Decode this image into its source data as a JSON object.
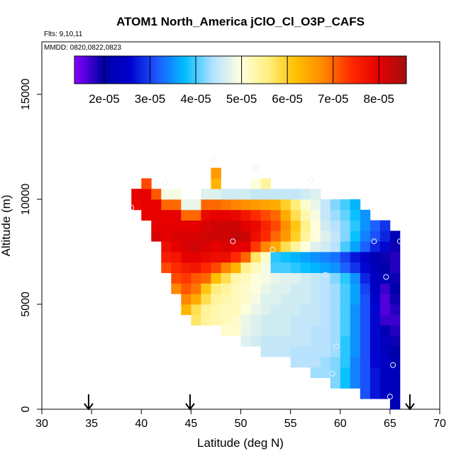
{
  "chart_data": {
    "type": "heatmap",
    "title": "ATOM1 North_America jClO_Cl_O3P_CAFS",
    "flights_label": "Flts: 9,10,11",
    "dates_label": "MMDD: 0820,0822,0823",
    "xlabel": "Latitude (deg N)",
    "ylabel": "Altitude (m)",
    "xlim": [
      30,
      70
    ],
    "ylim": [
      0,
      17500
    ],
    "x_ticks": [
      30,
      35,
      40,
      45,
      50,
      55,
      60,
      65,
      70
    ],
    "x_tick_labels": [
      "30",
      "35",
      "40",
      "45",
      "50",
      "55",
      "60",
      "65",
      "70"
    ],
    "y_ticks": [
      0,
      5000,
      10000,
      15000
    ],
    "y_tick_labels": [
      "0",
      "5000",
      "10000",
      "15000"
    ],
    "colorbar": {
      "min": 1.35e-05,
      "max": 8.6e-05,
      "ticks": [
        2e-05,
        3e-05,
        4e-05,
        5e-05,
        6e-05,
        7e-05,
        8e-05
      ],
      "tick_labels": [
        "2e-05",
        "3e-05",
        "4e-05",
        "5e-05",
        "6e-05",
        "7e-05",
        "8e-05"
      ],
      "stops": [
        "#8b00ff",
        "#0000a8",
        "#0000cd",
        "#1e5aff",
        "#00bfff",
        "#b4e1ff",
        "#ffffe0",
        "#fff080",
        "#ffc000",
        "#ff8800",
        "#ff2a00",
        "#e60000",
        "#a01010"
      ]
    },
    "cell_size": {
      "dlat": 1.0,
      "dalt": 500
    },
    "columns": [
      {
        "lat": 39.5,
        "z0": 9500,
        "vals": [
          79,
          80
        ]
      },
      {
        "lat": 40.5,
        "z0": 9000,
        "vals": [
          80,
          80,
          80,
          72
        ]
      },
      {
        "lat": 41.5,
        "z0": 8000,
        "vals": [
          81,
          80,
          80,
          80,
          71
        ]
      },
      {
        "lat": 42.5,
        "z0": 6500,
        "vals": [
          72,
          76,
          78,
          80,
          80,
          80,
          70,
          49
        ]
      },
      {
        "lat": 43.5,
        "z0": 5500,
        "vals": [
          68,
          72,
          74,
          77,
          80,
          81,
          80,
          80,
          70,
          49
        ]
      },
      {
        "lat": 44.5,
        "z0": 4500,
        "vals": [
          63,
          68,
          71,
          73,
          76,
          80,
          81,
          81,
          80,
          70,
          48
        ]
      },
      {
        "lat": 45.5,
        "z0": 4000,
        "vals": [
          57,
          58,
          64,
          69,
          71,
          77,
          80,
          82,
          81,
          80,
          70,
          48
        ]
      },
      {
        "lat": 46.5,
        "z0": 4000,
        "vals": [
          54,
          54,
          58,
          61,
          70,
          74,
          79,
          81,
          82,
          81,
          79,
          70,
          47
        ]
      },
      {
        "lat": 47.5,
        "z0": 4000,
        "vals": [
          53,
          53,
          54,
          56,
          62,
          72,
          78,
          80,
          82,
          82,
          80,
          70,
          47,
          63,
          66
        ]
      },
      {
        "lat": 48.5,
        "z0": 3500,
        "vals": [
          51,
          52,
          52,
          53,
          54,
          58,
          68,
          78,
          81,
          82,
          82,
          80,
          69,
          46
        ]
      },
      {
        "lat": 49.5,
        "z0": 3500,
        "vals": [
          51,
          51,
          52,
          52,
          52,
          53,
          63,
          74,
          80,
          83,
          82,
          79,
          68,
          46
        ]
      },
      {
        "lat": 50.5,
        "z0": 3000,
        "vals": [
          47,
          48,
          48,
          50,
          51,
          51,
          52,
          55,
          70,
          80,
          82,
          80,
          77,
          67,
          46
        ]
      },
      {
        "lat": 51.5,
        "z0": 3000,
        "vals": [
          46,
          47,
          47,
          48,
          49,
          50,
          50,
          52,
          57,
          73,
          78,
          79,
          74,
          66,
          45,
          50
        ]
      },
      {
        "lat": 52.5,
        "z0": 2500,
        "vals": [
          45,
          45,
          46,
          46,
          47,
          47,
          48,
          49,
          49,
          51,
          68,
          74,
          75,
          72,
          65,
          45,
          54
        ]
      },
      {
        "lat": 53.5,
        "z0": 2500,
        "vals": [
          45,
          45,
          46,
          46,
          46,
          47,
          47,
          48,
          40,
          39,
          64,
          70,
          72,
          70,
          64,
          45
        ]
      },
      {
        "lat": 54.5,
        "z0": 2500,
        "vals": [
          45,
          45,
          46,
          46,
          46,
          46,
          47,
          47,
          40,
          38,
          58,
          66,
          67,
          64,
          60,
          45
        ]
      },
      {
        "lat": 55.5,
        "z0": 2000,
        "vals": [
          44,
          44,
          45,
          45,
          45,
          46,
          46,
          46,
          47,
          39,
          37,
          54,
          60,
          61,
          58,
          56,
          45
        ]
      },
      {
        "lat": 56.5,
        "z0": 2000,
        "vals": [
          44,
          44,
          45,
          45,
          45,
          45,
          46,
          46,
          46,
          38,
          36,
          50,
          54,
          55,
          53,
          51,
          46
        ]
      },
      {
        "lat": 57.5,
        "z0": 1500,
        "vals": [
          43,
          44,
          44,
          44,
          44,
          45,
          45,
          45,
          45,
          45,
          37,
          35,
          47,
          50,
          50,
          49,
          48,
          47
        ]
      },
      {
        "lat": 58.5,
        "z0": 1500,
        "vals": [
          43,
          43,
          44,
          44,
          44,
          44,
          44,
          44,
          44,
          44,
          36,
          34,
          46,
          47,
          46,
          45,
          45
        ]
      },
      {
        "lat": 59.5,
        "z0": 1000,
        "vals": [
          42,
          42,
          42,
          43,
          43,
          43,
          43,
          43,
          43,
          43,
          42,
          35,
          33,
          44,
          45,
          44,
          43,
          42
        ]
      },
      {
        "lat": 60.5,
        "z0": 1000,
        "vals": [
          38,
          38,
          39,
          39,
          39,
          40,
          40,
          40,
          40,
          40,
          39,
          32,
          30,
          40,
          42,
          42,
          41,
          40
        ]
      },
      {
        "lat": 61.5,
        "z0": 1000,
        "vals": [
          34,
          34,
          34,
          35,
          35,
          35,
          35,
          35,
          36,
          36,
          35,
          29,
          27,
          36,
          38,
          39,
          38,
          37
        ]
      },
      {
        "lat": 62.5,
        "z0": 500,
        "vals": [
          31,
          31,
          31,
          31,
          31,
          31,
          31,
          31,
          31,
          31,
          30,
          28,
          26,
          25,
          32,
          34,
          35,
          35
        ]
      },
      {
        "lat": 63.5,
        "z0": 500,
        "vals": [
          27,
          27,
          27,
          26,
          26,
          26,
          26,
          26,
          26,
          25,
          24,
          24,
          22,
          21,
          28,
          31,
          32
        ]
      },
      {
        "lat": 64.5,
        "z0": 500,
        "vals": [
          24,
          24,
          24,
          24,
          23,
          23,
          22,
          17,
          16,
          16,
          17,
          22,
          20,
          19,
          26,
          28,
          29
        ]
      },
      {
        "lat": 65.5,
        "z0": 0,
        "vals": [
          22,
          22,
          22,
          22,
          21,
          20,
          19,
          18,
          17,
          18,
          19,
          20,
          19,
          18,
          18,
          19,
          22
        ]
      }
    ],
    "sample_points": [
      {
        "lat": 39.0,
        "alt": 9600
      },
      {
        "lat": 42.4,
        "alt": 10800
      },
      {
        "lat": 47.3,
        "alt": 11900
      },
      {
        "lat": 49.2,
        "alt": 8000
      },
      {
        "lat": 51.5,
        "alt": 11500
      },
      {
        "lat": 57.0,
        "alt": 10900
      },
      {
        "lat": 53.2,
        "alt": 7600
      },
      {
        "lat": 58.5,
        "alt": 6400
      },
      {
        "lat": 63.4,
        "alt": 8000
      },
      {
        "lat": 66.0,
        "alt": 8000
      },
      {
        "lat": 64.6,
        "alt": 6300
      },
      {
        "lat": 50.4,
        "alt": 3200
      },
      {
        "lat": 59.6,
        "alt": 3000
      },
      {
        "lat": 59.2,
        "alt": 1700
      },
      {
        "lat": 65.3,
        "alt": 2100
      },
      {
        "lat": 65.0,
        "alt": 600
      }
    ],
    "arrow_markers_lat": [
      34.7,
      44.9,
      67.0
    ]
  }
}
